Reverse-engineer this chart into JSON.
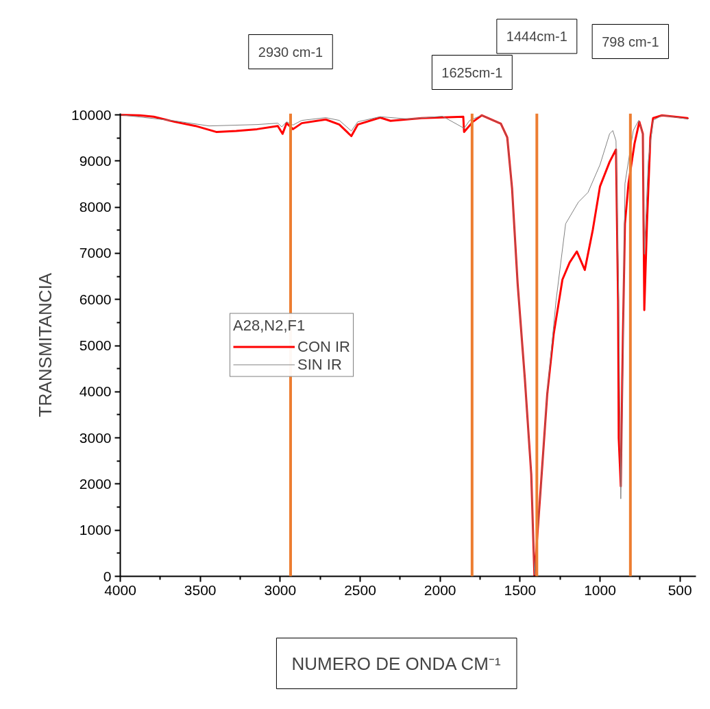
{
  "chart_data": {
    "type": "line",
    "xlabel": "NUMERO DE ONDA CM⁻¹",
    "ylabel": "TRANSMITANCIA",
    "legend_title": "A28,N2,F1",
    "legend": "left",
    "grid": false,
    "marker": "none",
    "line_style": "solid",
    "xlim": [
      4000,
      400
    ],
    "xticks": [
      4000,
      3500,
      3000,
      2500,
      2000,
      1500,
      1000,
      500
    ],
    "ylim": [
      0,
      10030
    ],
    "yticks": [
      0,
      1000,
      2000,
      3000,
      4000,
      5000,
      6000,
      7000,
      8000,
      9000,
      10000
    ],
    "series": [
      {
        "name": "CON IR",
        "color": "#ff0000",
        "x": [
          4000,
          3875,
          3790,
          3660,
          3530,
          3400,
          3275,
          3145,
          3015,
          2985,
          2960,
          2920,
          2865,
          2715,
          2630,
          2555,
          2515,
          2375,
          2310,
          2115,
          1855,
          1850,
          1795,
          1740,
          1620,
          1580,
          1550,
          1515,
          1470,
          1430,
          1410,
          1370,
          1330,
          1290,
          1235,
          1190,
          1145,
          1095,
          1045,
          1000,
          940,
          900,
          887,
          883,
          870,
          857,
          844,
          822,
          784,
          754,
          732,
          723,
          706,
          685,
          668,
          612,
          453,
          449
        ],
        "values": [
          10000,
          9990,
          9960,
          9850,
          9760,
          9630,
          9650,
          9690,
          9760,
          9590,
          9820,
          9690,
          9820,
          9900,
          9790,
          9540,
          9790,
          9940,
          9870,
          9930,
          9960,
          9630,
          9850,
          9990,
          9810,
          9510,
          8410,
          6340,
          4280,
          2210,
          0,
          1950,
          3950,
          5240,
          6430,
          6800,
          7040,
          6640,
          7510,
          8450,
          8980,
          9250,
          5970,
          3000,
          1950,
          5160,
          7640,
          8510,
          9380,
          9850,
          9590,
          5770,
          7670,
          9510,
          9930,
          9990,
          9930,
          9910
        ]
      },
      {
        "name": "SIN IR",
        "color": "#808080",
        "x": [
          4000,
          3660,
          3445,
          3145,
          3015,
          2990,
          2960,
          2920,
          2865,
          2715,
          2630,
          2555,
          2515,
          2375,
          2200,
          1985,
          1850,
          1815,
          1740,
          1620,
          1580,
          1550,
          1515,
          1470,
          1430,
          1410,
          1370,
          1330,
          1275,
          1215,
          1135,
          1075,
          1035,
          1000,
          940,
          920,
          900,
          883,
          870,
          857,
          844,
          792,
          758,
          732,
          723,
          698,
          668,
          612,
          449
        ],
        "values": [
          10000,
          9870,
          9760,
          9790,
          9820,
          9740,
          9850,
          9780,
          9880,
          9940,
          9880,
          9650,
          9850,
          9960,
          9910,
          9970,
          9710,
          9880,
          9990,
          9810,
          9510,
          8410,
          6340,
          4280,
          2210,
          30,
          1920,
          3980,
          5970,
          7640,
          8110,
          8320,
          8640,
          8920,
          9590,
          9660,
          9440,
          5970,
          1680,
          4570,
          8510,
          9660,
          9880,
          9590,
          6980,
          9000,
          9880,
          9990,
          9910
        ]
      }
    ],
    "ref_lines": [
      {
        "axis": "x",
        "value": 2935,
        "color": "#ed7d31"
      },
      {
        "axis": "x",
        "value": 1800,
        "color": "#ed7d31"
      },
      {
        "axis": "x",
        "value": 1395,
        "color": "#ed7d31"
      },
      {
        "axis": "x",
        "value": 810,
        "color": "#ed7d31"
      }
    ],
    "annotations": [
      "2930 cm-1",
      "1625cm-1",
      "1444cm-1",
      "798 cm-1"
    ]
  }
}
